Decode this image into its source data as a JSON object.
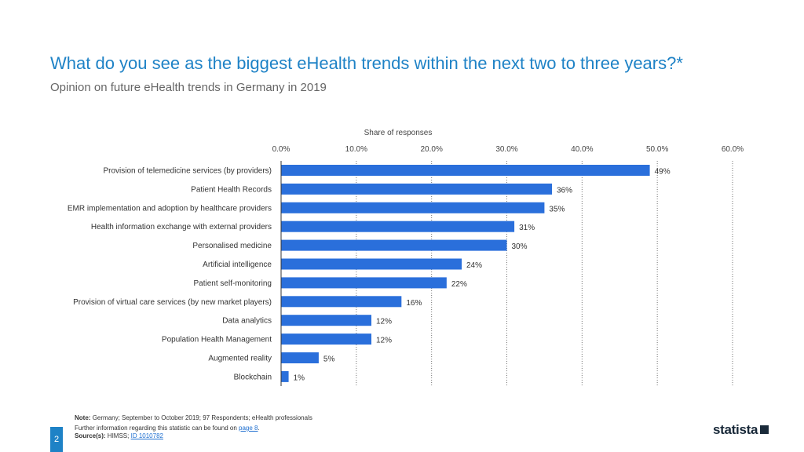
{
  "header": {
    "title": "What do you see as the biggest eHealth trends within the next two to three years?*",
    "subtitle": "Opinion on future eHealth trends in Germany in 2019"
  },
  "chart_data": {
    "type": "bar",
    "orientation": "horizontal",
    "xlabel": "Share of responses",
    "xlim": [
      0,
      60
    ],
    "ticks": [
      "0.0%",
      "10.0%",
      "20.0%",
      "30.0%",
      "40.0%",
      "50.0%",
      "60.0%"
    ],
    "categories": [
      "Provision of telemedicine services (by providers)",
      "Patient Health Records",
      "EMR implementation and adoption by healthcare providers",
      "Health information exchange with external providers",
      "Personalised medicine",
      "Artificial intelligence",
      "Patient self-monitoring",
      "Provision of virtual care services (by new market players)",
      "Data analytics",
      "Population Health Management",
      "Augmented reality",
      "Blockchain"
    ],
    "values": [
      49,
      36,
      35,
      31,
      30,
      24,
      22,
      16,
      12,
      12,
      5,
      1
    ],
    "value_labels": [
      "49%",
      "36%",
      "35%",
      "31%",
      "30%",
      "24%",
      "22%",
      "16%",
      "12%",
      "12%",
      "5%",
      "1%"
    ],
    "bar_color": "#2a6fdb",
    "grid": true
  },
  "footer": {
    "note_label": "Note:",
    "note_text": "Germany; September to October 2019; 97 Respondents; eHealth professionals",
    "info_text": "Further information regarding this statistic can be found on",
    "info_link": "page 8",
    "source_label": "Source(s):",
    "source_text": "HIMSS;",
    "source_link": "ID 1010782",
    "page_number": "2",
    "brand": "statista"
  }
}
